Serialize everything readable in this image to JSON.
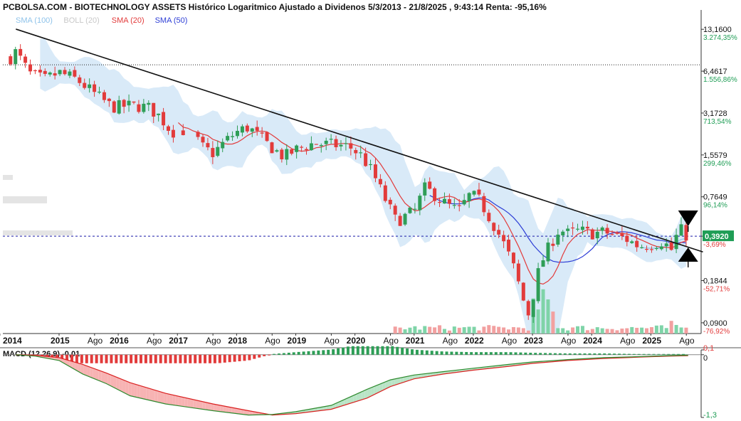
{
  "title": "PCBOLSA.COM - BIOTECHNOLOGY ASSETS Histórico Logaritmico Ajustado a Dividenos 5/3/2013 - 21/8/2025 , 9:43:14 Renta: -95,16%",
  "colors": {
    "up": "#2e9e57",
    "down": "#e23b3b",
    "sma100": "#90c6ec",
    "boll": "#cce3f6",
    "sma20": "#e23b3b",
    "sma50": "#2d3ed6",
    "trend": "#111111",
    "current": "#1a1aa8",
    "macd": "#2f8a2f",
    "signal": "#d92020",
    "grid": "#999999",
    "axis_green": "#1f9d55",
    "axis_red": "#e23b3b",
    "vol_up": "#7fd4a8",
    "vol_down": "#f2a0a0"
  },
  "legend": [
    {
      "label": "SMA (100)",
      "color": "#8fc3ea"
    },
    {
      "label": "BOLL (20)",
      "color": "#c8c8c8"
    },
    {
      "label": "SMA (20)",
      "color": "#e23b3b"
    },
    {
      "label": "SMA (50)",
      "color": "#2d3ed6"
    }
  ],
  "current_price_label": "0,3920",
  "macd_label": "MACD (12,26,9)",
  "macd_value": "-0,01",
  "chart_data": [
    {
      "type": "candlestick",
      "scale": "log",
      "ylim": [
        0.075,
        17
      ],
      "x_labels": [
        "2014",
        "2015",
        "Ago",
        "2016",
        "Ago",
        "2017",
        "Ago",
        "2018",
        "Ago",
        "2019",
        "Ago",
        "2020",
        "Ago",
        "2021",
        "Ago",
        "2022",
        "Ago",
        "2023",
        "Ago",
        "2024",
        "Ago",
        "2025",
        "Ago"
      ],
      "x_years": [
        2014,
        2015,
        2015.6,
        2016,
        2016.6,
        2017,
        2017.6,
        2018,
        2018.6,
        2019,
        2019.6,
        2020,
        2020.6,
        2021,
        2021.6,
        2022,
        2022.6,
        2023,
        2023.6,
        2024,
        2024.6,
        2025,
        2025.6
      ],
      "y_ticks": [
        {
          "value": 13.16,
          "label": "13,1600",
          "pct": "3.274,35%"
        },
        {
          "value": 6.4617,
          "label": "6,4617",
          "pct": "1.556,86%"
        },
        {
          "value": 3.1728,
          "label": "3,1728",
          "pct": "713,54%"
        },
        {
          "value": 1.5579,
          "label": "1,5579",
          "pct": "299,46%"
        },
        {
          "value": 0.7649,
          "label": "0,7649",
          "pct": "96,14%"
        },
        {
          "value": 0.392,
          "label": "0,3920",
          "pct": "-3,69%"
        },
        {
          "value": 0.1844,
          "label": "0,1844",
          "pct": "-52,71%"
        },
        {
          "value": 0.09,
          "label": "0,0900",
          "pct": "-76,92%"
        }
      ],
      "current_price": 0.392,
      "high_dotted": 7.2,
      "trendline": [
        {
          "t": 2014.27,
          "v": 13.2
        },
        {
          "t": 2025.88,
          "v": 0.3
        }
      ],
      "anchors": [
        {
          "t": 2014.05,
          "c": 7.0
        },
        {
          "t": 2014.27,
          "c": 9.0
        },
        {
          "t": 2014.5,
          "c": 6.2
        },
        {
          "t": 2014.75,
          "c": 5.6
        },
        {
          "t": 2015.0,
          "c": 6.3
        },
        {
          "t": 2015.3,
          "c": 5.6
        },
        {
          "t": 2015.6,
          "c": 4.4
        },
        {
          "t": 2015.9,
          "c": 3.5
        },
        {
          "t": 2016.2,
          "c": 3.6
        },
        {
          "t": 2016.5,
          "c": 3.5
        },
        {
          "t": 2016.7,
          "c": 3.0
        },
        {
          "t": 2016.9,
          "c": 2.3
        },
        {
          "t": 2017.2,
          "c": 2.4
        },
        {
          "t": 2017.4,
          "c": 1.8
        },
        {
          "t": 2017.6,
          "c": 1.6
        },
        {
          "t": 2017.8,
          "c": 1.95
        },
        {
          "t": 2018.0,
          "c": 2.3
        },
        {
          "t": 2018.2,
          "c": 2.5
        },
        {
          "t": 2018.5,
          "c": 1.9
        },
        {
          "t": 2018.8,
          "c": 1.5
        },
        {
          "t": 2019.0,
          "c": 1.7
        },
        {
          "t": 2019.3,
          "c": 1.9
        },
        {
          "t": 2019.6,
          "c": 1.85
        },
        {
          "t": 2019.9,
          "c": 1.8
        },
        {
          "t": 2020.1,
          "c": 1.55
        },
        {
          "t": 2020.3,
          "c": 1.15
        },
        {
          "t": 2020.5,
          "c": 0.75
        },
        {
          "t": 2020.7,
          "c": 0.5
        },
        {
          "t": 2020.85,
          "c": 0.55
        },
        {
          "t": 2021.05,
          "c": 0.62
        },
        {
          "t": 2021.15,
          "c": 0.9
        },
        {
          "t": 2021.3,
          "c": 0.82
        },
        {
          "t": 2021.45,
          "c": 0.72
        },
        {
          "t": 2021.6,
          "c": 0.65
        },
        {
          "t": 2021.75,
          "c": 0.6
        },
        {
          "t": 2021.95,
          "c": 0.8
        },
        {
          "t": 2022.1,
          "c": 0.72
        },
        {
          "t": 2022.25,
          "c": 0.56
        },
        {
          "t": 2022.4,
          "c": 0.43
        },
        {
          "t": 2022.55,
          "c": 0.32
        },
        {
          "t": 2022.7,
          "c": 0.22
        },
        {
          "t": 2022.85,
          "c": 0.13
        },
        {
          "t": 2022.95,
          "c": 0.1
        },
        {
          "t": 2023.05,
          "c": 0.18
        },
        {
          "t": 2023.15,
          "c": 0.25
        },
        {
          "t": 2023.3,
          "c": 0.34
        },
        {
          "t": 2023.45,
          "c": 0.44
        },
        {
          "t": 2023.6,
          "c": 0.41
        },
        {
          "t": 2023.8,
          "c": 0.43
        },
        {
          "t": 2024.0,
          "c": 0.41
        },
        {
          "t": 2024.2,
          "c": 0.42
        },
        {
          "t": 2024.4,
          "c": 0.4
        },
        {
          "t": 2024.6,
          "c": 0.37
        },
        {
          "t": 2024.8,
          "c": 0.33
        },
        {
          "t": 2025.0,
          "c": 0.34
        },
        {
          "t": 2025.2,
          "c": 0.36
        },
        {
          "t": 2025.35,
          "c": 0.31
        },
        {
          "t": 2025.48,
          "c": 0.45
        },
        {
          "t": 2025.58,
          "c": 0.4
        },
        {
          "t": 2025.63,
          "c": 0.392
        }
      ]
    },
    {
      "type": "line",
      "name": "MACD (12,26,9)",
      "ylim": [
        -1.3,
        0.1
      ],
      "y_ticks": [
        {
          "value": 0.1,
          "label": "0,1"
        },
        {
          "value": 0,
          "label": "0"
        },
        {
          "value": -1.3,
          "label": "-1,3"
        }
      ],
      "macd": [
        {
          "t": 2014.27,
          "v": 0.0
        },
        {
          "t": 2014.6,
          "v": -0.03
        },
        {
          "t": 2015.0,
          "v": -0.12
        },
        {
          "t": 2015.4,
          "v": -0.4
        },
        {
          "t": 2015.8,
          "v": -0.6
        },
        {
          "t": 2016.2,
          "v": -0.85
        },
        {
          "t": 2016.8,
          "v": -1.02
        },
        {
          "t": 2017.6,
          "v": -1.16
        },
        {
          "t": 2018.2,
          "v": -1.25
        },
        {
          "t": 2018.6,
          "v": -1.24
        },
        {
          "t": 2019.0,
          "v": -1.18
        },
        {
          "t": 2019.6,
          "v": -1.05
        },
        {
          "t": 2020.2,
          "v": -0.72
        },
        {
          "t": 2020.6,
          "v": -0.52
        },
        {
          "t": 2021.0,
          "v": -0.42
        },
        {
          "t": 2021.5,
          "v": -0.35
        },
        {
          "t": 2022.0,
          "v": -0.28
        },
        {
          "t": 2022.6,
          "v": -0.2
        },
        {
          "t": 2023.0,
          "v": -0.15
        },
        {
          "t": 2023.6,
          "v": -0.1
        },
        {
          "t": 2024.2,
          "v": -0.06
        },
        {
          "t": 2024.8,
          "v": -0.04
        },
        {
          "t": 2025.3,
          "v": -0.02
        },
        {
          "t": 2025.63,
          "v": -0.01
        }
      ],
      "signal": [
        {
          "t": 2014.27,
          "v": 0.0
        },
        {
          "t": 2014.6,
          "v": -0.01
        },
        {
          "t": 2015.0,
          "v": -0.06
        },
        {
          "t": 2015.4,
          "v": -0.2
        },
        {
          "t": 2015.8,
          "v": -0.38
        },
        {
          "t": 2016.2,
          "v": -0.58
        },
        {
          "t": 2016.8,
          "v": -0.8
        },
        {
          "t": 2017.6,
          "v": -1.02
        },
        {
          "t": 2018.2,
          "v": -1.16
        },
        {
          "t": 2018.6,
          "v": -1.25
        },
        {
          "t": 2019.0,
          "v": -1.22
        },
        {
          "t": 2019.6,
          "v": -1.13
        },
        {
          "t": 2020.2,
          "v": -0.9
        },
        {
          "t": 2020.6,
          "v": -0.66
        },
        {
          "t": 2021.0,
          "v": -0.5
        },
        {
          "t": 2021.5,
          "v": -0.4
        },
        {
          "t": 2022.0,
          "v": -0.32
        },
        {
          "t": 2022.6,
          "v": -0.24
        },
        {
          "t": 2023.0,
          "v": -0.18
        },
        {
          "t": 2023.6,
          "v": -0.12
        },
        {
          "t": 2024.2,
          "v": -0.08
        },
        {
          "t": 2024.8,
          "v": -0.05
        },
        {
          "t": 2025.3,
          "v": -0.03
        },
        {
          "t": 2025.63,
          "v": -0.02
        }
      ]
    }
  ]
}
